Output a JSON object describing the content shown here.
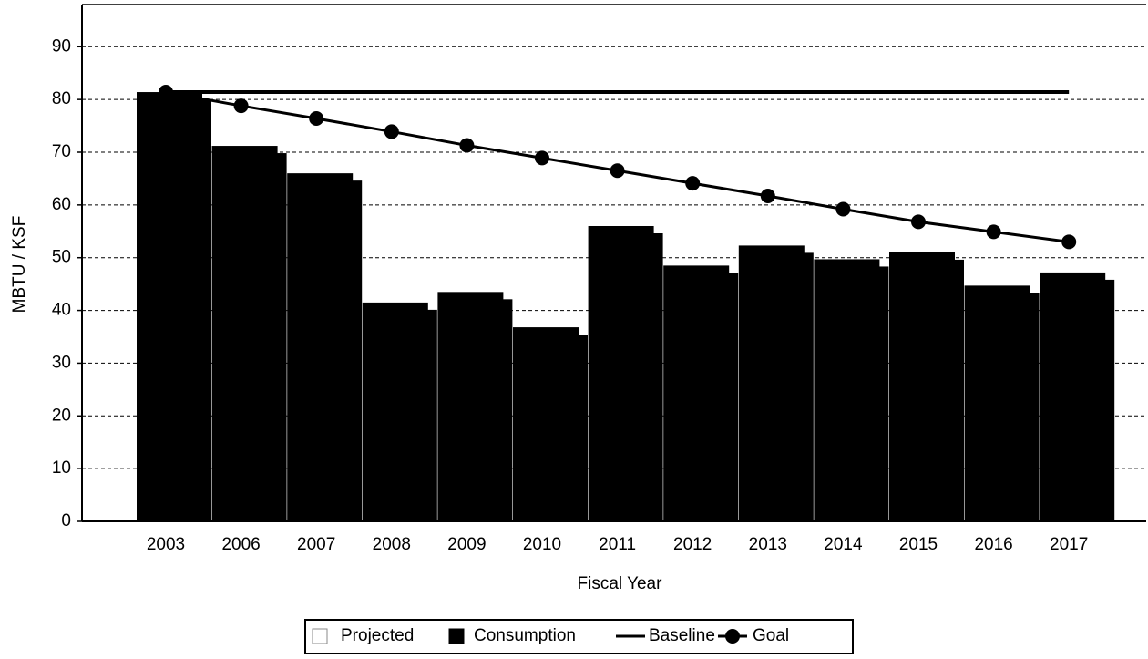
{
  "chart_data": {
    "type": "bar",
    "y_label": "MBTU / KSF",
    "x_label": "Fiscal Year",
    "categories": [
      "2003",
      "2006",
      "2007",
      "2008",
      "2009",
      "2010",
      "2011",
      "2012",
      "2013",
      "2014",
      "2015",
      "2016",
      "2017"
    ],
    "series": [
      {
        "name": "Projected",
        "color": "#ffffff",
        "type": "bar",
        "values": [
          null,
          null,
          null,
          null,
          null,
          null,
          null,
          null,
          null,
          null,
          null,
          null,
          null
        ]
      },
      {
        "name": "Consumption",
        "color": "#000000",
        "type": "bar",
        "values": [
          81.4,
          71.2,
          66,
          41.5,
          43.5,
          36.8,
          56,
          48.5,
          52.3,
          49.7,
          51,
          44.7,
          47.2
        ]
      },
      {
        "name": "Baseline",
        "color": "#000000",
        "type": "line",
        "values": [
          81.4,
          81.4,
          81.4,
          81.4,
          81.4,
          81.4,
          81.4,
          81.4,
          81.4,
          81.4,
          81.4,
          81.4,
          81.4
        ]
      },
      {
        "name": "Goal",
        "color": "#000000",
        "type": "line-marker",
        "values": [
          81.4,
          78.8,
          76.4,
          73.9,
          71.3,
          68.9,
          66.5,
          64.1,
          61.7,
          59.2,
          56.8,
          54.9,
          53.0
        ]
      }
    ],
    "ylim": [
      0,
      98
    ],
    "yticks": [
      0,
      10,
      20,
      30,
      40,
      50,
      60,
      70,
      80,
      90
    ],
    "grid": true,
    "legend": "bottom"
  }
}
